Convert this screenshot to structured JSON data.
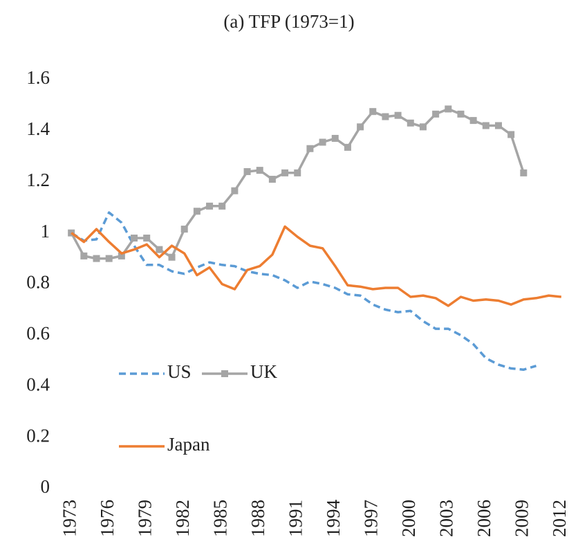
{
  "chart_data": {
    "type": "line",
    "title": "(a) TFP (1973=1)",
    "x": [
      1973,
      1974,
      1975,
      1976,
      1977,
      1978,
      1979,
      1980,
      1981,
      1982,
      1983,
      1984,
      1985,
      1986,
      1987,
      1988,
      1989,
      1990,
      1991,
      1992,
      1993,
      1994,
      1995,
      1996,
      1997,
      1998,
      1999,
      2000,
      2001,
      2002,
      2003,
      2004,
      2005,
      2006,
      2007,
      2008,
      2009,
      2010,
      2011,
      2012
    ],
    "xlim": [
      1972,
      2013
    ],
    "xticks": [
      1973,
      1976,
      1979,
      1982,
      1985,
      1988,
      1991,
      1994,
      1997,
      2000,
      2003,
      2006,
      2009,
      2012
    ],
    "ylim": [
      0,
      1.6
    ],
    "yticks": [
      0,
      0.2,
      0.4,
      0.6,
      0.8,
      1,
      1.2,
      1.4,
      1.6
    ],
    "series": [
      {
        "name": "US",
        "color": "#5b9bd5",
        "dash": true,
        "marker": false,
        "values": [
          1.0,
          0.97,
          0.975,
          1.08,
          1.04,
          0.95,
          0.875,
          0.875,
          0.85,
          0.84,
          0.865,
          0.885,
          0.875,
          0.87,
          0.85,
          0.84,
          0.835,
          0.815,
          0.785,
          0.81,
          0.8,
          0.785,
          0.76,
          0.755,
          0.72,
          0.7,
          0.69,
          0.695,
          0.655,
          0.625,
          0.625,
          0.6,
          0.565,
          0.51,
          0.485,
          0.47,
          0.465,
          0.48,
          null,
          null
        ]
      },
      {
        "name": "UK",
        "color": "#a5a5a5",
        "dash": false,
        "marker": true,
        "values": [
          1.0,
          0.91,
          0.9,
          0.9,
          0.91,
          0.98,
          0.98,
          0.935,
          0.905,
          1.015,
          1.085,
          1.105,
          1.105,
          1.165,
          1.24,
          1.245,
          1.21,
          1.235,
          1.235,
          1.33,
          1.355,
          1.37,
          1.335,
          1.415,
          1.475,
          1.455,
          1.46,
          1.43,
          1.415,
          1.465,
          1.485,
          1.465,
          1.44,
          1.42,
          1.42,
          1.385,
          1.235,
          null,
          null,
          null
        ]
      },
      {
        "name": "Japan",
        "color": "#ed7d31",
        "dash": false,
        "marker": false,
        "values": [
          1.0,
          0.965,
          1.015,
          0.965,
          0.92,
          0.935,
          0.955,
          0.905,
          0.95,
          0.92,
          0.835,
          0.865,
          0.8,
          0.78,
          0.855,
          0.87,
          0.915,
          1.025,
          0.985,
          0.95,
          0.94,
          0.87,
          0.795,
          0.79,
          0.78,
          0.785,
          0.785,
          0.75,
          0.755,
          0.745,
          0.715,
          0.75,
          0.735,
          0.74,
          0.735,
          0.72,
          0.74,
          0.745,
          0.755,
          0.75
        ]
      }
    ]
  }
}
